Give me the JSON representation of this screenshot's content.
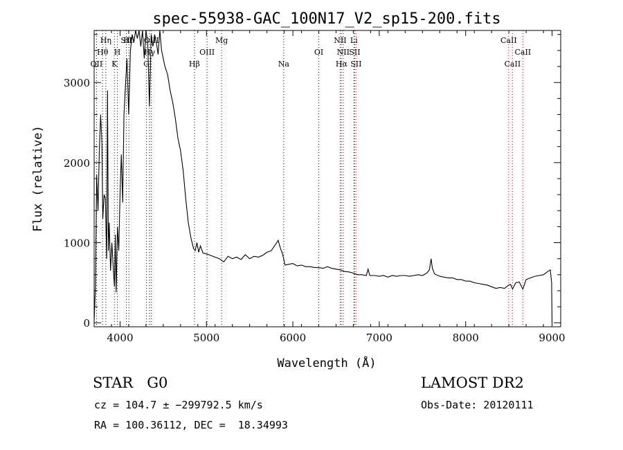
{
  "chart_data": {
    "type": "line",
    "title": "spec-55938-GAC_100N17_V2_sp15-200.fits",
    "xlabel": "Wavelength (Å)",
    "ylabel": "Flux (relative)",
    "xlim": [
      3700,
      9100
    ],
    "ylim": [
      -50,
      3650
    ],
    "grid": false,
    "x_ticks": [
      4000,
      5000,
      6000,
      7000,
      8000,
      9000
    ],
    "y_ticks": [
      0,
      1000,
      2000,
      3000
    ],
    "spectrum": [
      [
        3700,
        20
      ],
      [
        3715,
        450
      ],
      [
        3730,
        1850
      ],
      [
        3745,
        1400
      ],
      [
        3760,
        2150
      ],
      [
        3775,
        2600
      ],
      [
        3790,
        2250
      ],
      [
        3800,
        1300
      ],
      [
        3815,
        1600
      ],
      [
        3830,
        1550
      ],
      [
        3845,
        800
      ],
      [
        3855,
        2900
      ],
      [
        3865,
        900
      ],
      [
        3875,
        1250
      ],
      [
        3890,
        650
      ],
      [
        3905,
        1000
      ],
      [
        3920,
        700
      ],
      [
        3935,
        450
      ],
      [
        3945,
        1100
      ],
      [
        3955,
        380
      ],
      [
        3970,
        1200
      ],
      [
        3985,
        900
      ],
      [
        4000,
        1600
      ],
      [
        4015,
        2100
      ],
      [
        4030,
        1500
      ],
      [
        4045,
        2600
      ],
      [
        4060,
        2900
      ],
      [
        4080,
        3300
      ],
      [
        4100,
        2600
      ],
      [
        4120,
        3400
      ],
      [
        4140,
        3600
      ],
      [
        4160,
        3500
      ],
      [
        4180,
        3650
      ],
      [
        4200,
        3550
      ],
      [
        4220,
        3650
      ],
      [
        4240,
        3450
      ],
      [
        4260,
        3650
      ],
      [
        4280,
        3300
      ],
      [
        4300,
        3650
      ],
      [
        4320,
        3500
      ],
      [
        4340,
        2700
      ],
      [
        4360,
        3600
      ],
      [
        4380,
        3450
      ],
      [
        4400,
        3600
      ],
      [
        4420,
        3500
      ],
      [
        4440,
        3350
      ],
      [
        4460,
        3650
      ],
      [
        4480,
        3400
      ],
      [
        4500,
        3300
      ],
      [
        4520,
        3200
      ],
      [
        4550,
        3100
      ],
      [
        4580,
        2900
      ],
      [
        4610,
        2750
      ],
      [
        4640,
        2550
      ],
      [
        4670,
        2300
      ],
      [
        4700,
        2150
      ],
      [
        4730,
        1900
      ],
      [
        4760,
        1550
      ],
      [
        4790,
        1250
      ],
      [
        4820,
        1060
      ],
      [
        4850,
        930
      ],
      [
        4870,
        900
      ],
      [
        4890,
        1000
      ],
      [
        4910,
        880
      ],
      [
        4930,
        960
      ],
      [
        4960,
        870
      ],
      [
        5000,
        860
      ],
      [
        5050,
        840
      ],
      [
        5100,
        820
      ],
      [
        5150,
        800
      ],
      [
        5200,
        760
      ],
      [
        5250,
        830
      ],
      [
        5300,
        800
      ],
      [
        5350,
        820
      ],
      [
        5400,
        790
      ],
      [
        5450,
        850
      ],
      [
        5500,
        800
      ],
      [
        5550,
        830
      ],
      [
        5600,
        820
      ],
      [
        5650,
        840
      ],
      [
        5700,
        880
      ],
      [
        5750,
        900
      ],
      [
        5800,
        980
      ],
      [
        5830,
        1030
      ],
      [
        5850,
        950
      ],
      [
        5880,
        860
      ],
      [
        5910,
        720
      ],
      [
        5950,
        730
      ],
      [
        6000,
        740
      ],
      [
        6050,
        710
      ],
      [
        6100,
        720
      ],
      [
        6150,
        700
      ],
      [
        6200,
        700
      ],
      [
        6250,
        690
      ],
      [
        6300,
        690
      ],
      [
        6350,
        680
      ],
      [
        6400,
        700
      ],
      [
        6450,
        680
      ],
      [
        6500,
        670
      ],
      [
        6550,
        660
      ],
      [
        6600,
        640
      ],
      [
        6650,
        635
      ],
      [
        6700,
        620
      ],
      [
        6750,
        600
      ],
      [
        6800,
        600
      ],
      [
        6850,
        590
      ],
      [
        6870,
        670
      ],
      [
        6890,
        590
      ],
      [
        6950,
        590
      ],
      [
        7000,
        580
      ],
      [
        7050,
        590
      ],
      [
        7100,
        570
      ],
      [
        7150,
        590
      ],
      [
        7200,
        580
      ],
      [
        7250,
        590
      ],
      [
        7300,
        590
      ],
      [
        7350,
        580
      ],
      [
        7400,
        590
      ],
      [
        7450,
        600
      ],
      [
        7500,
        590
      ],
      [
        7550,
        620
      ],
      [
        7580,
        660
      ],
      [
        7600,
        800
      ],
      [
        7615,
        680
      ],
      [
        7640,
        610
      ],
      [
        7700,
        580
      ],
      [
        7750,
        570
      ],
      [
        7800,
        560
      ],
      [
        7850,
        560
      ],
      [
        7900,
        540
      ],
      [
        7950,
        540
      ],
      [
        8000,
        520
      ],
      [
        8050,
        520
      ],
      [
        8100,
        500
      ],
      [
        8150,
        490
      ],
      [
        8200,
        480
      ],
      [
        8250,
        470
      ],
      [
        8300,
        450
      ],
      [
        8350,
        430
      ],
      [
        8400,
        440
      ],
      [
        8450,
        430
      ],
      [
        8498,
        470
      ],
      [
        8520,
        480
      ],
      [
        8542,
        420
      ],
      [
        8580,
        500
      ],
      [
        8620,
        510
      ],
      [
        8662,
        420
      ],
      [
        8700,
        540
      ],
      [
        8750,
        560
      ],
      [
        8800,
        580
      ],
      [
        8850,
        590
      ],
      [
        8900,
        600
      ],
      [
        8950,
        640
      ],
      [
        8980,
        660
      ],
      [
        8995,
        500
      ],
      [
        9000,
        0
      ]
    ],
    "line_markers": [
      {
        "label": "OII",
        "wavelength": 3727,
        "color": "#000000",
        "row": 3
      },
      {
        "label": "Hθ",
        "wavelength": 3798,
        "color": "#000000",
        "row": 2
      },
      {
        "label": "Hη",
        "wavelength": 3835,
        "color": "#000000",
        "row": 1
      },
      {
        "label": "K",
        "wavelength": 3934,
        "color": "#000000",
        "row": 3
      },
      {
        "label": "H",
        "wavelength": 3969,
        "color": "#000000",
        "row": 2
      },
      {
        "label": "SII",
        "wavelength": 4072,
        "color": "#000000",
        "row": 1
      },
      {
        "label": "Hδ",
        "wavelength": 4102,
        "color": "#000000",
        "row": 1
      },
      {
        "label": "G",
        "wavelength": 4305,
        "color": "#000000",
        "row": 3
      },
      {
        "label": "Hγ",
        "wavelength": 4341,
        "color": "#000000",
        "row": 2
      },
      {
        "label": "OIII",
        "wavelength": 4363,
        "color": "#000000",
        "row": 1
      },
      {
        "label": "Hβ",
        "wavelength": 4861,
        "color": "#000000",
        "row": 3
      },
      {
        "label": "OIII",
        "wavelength": 5007,
        "color": "#000000",
        "row": 2
      },
      {
        "label": "Mg",
        "wavelength": 5175,
        "color": "#000000",
        "row": 1
      },
      {
        "label": "Na",
        "wavelength": 5894,
        "color": "#000000",
        "row": 3
      },
      {
        "label": "OI",
        "wavelength": 6300,
        "color": "#000000",
        "row": 2
      },
      {
        "label": "NII",
        "wavelength": 6548,
        "color": "#000000",
        "row": 1
      },
      {
        "label": "Hα",
        "wavelength": 6563,
        "color": "#c00000",
        "row": 3
      },
      {
        "label": "NII",
        "wavelength": 6583,
        "color": "#000000",
        "row": 2
      },
      {
        "label": "Li",
        "wavelength": 6707,
        "color": "#000000",
        "row": 1
      },
      {
        "label": "SII",
        "wavelength": 6716,
        "color": "#c00000",
        "row": 2
      },
      {
        "label": "SII",
        "wavelength": 6731,
        "color": "#c00000",
        "row": 3
      },
      {
        "label": "CaII",
        "wavelength": 8498,
        "color": "#c00000",
        "row": 1
      },
      {
        "label": "CaII",
        "wavelength": 8542,
        "color": "#c00000",
        "row": 3
      },
      {
        "label": "CaII",
        "wavelength": 8662,
        "color": "#c00000",
        "row": 2
      }
    ]
  },
  "info": {
    "class_text": "STAR   G0",
    "survey": "LAMOST DR2",
    "cz_text": "cz = 104.7 ± −299792.5 km/s",
    "obs_date": "Obs-Date: 20120111",
    "radec": "RA = 100.36112, DEC =  18.34993"
  }
}
